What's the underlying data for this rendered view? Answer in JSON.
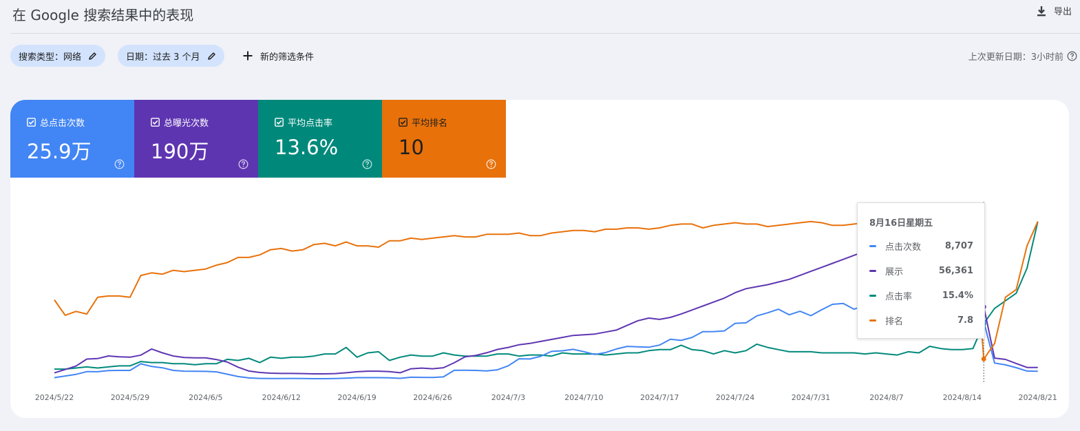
{
  "header": {
    "title": "在 Google 搜索结果中的表现",
    "export_label": "导出"
  },
  "filters": {
    "search_type": "搜索类型：网络",
    "date": "日期：过去 3 个月",
    "add_filter": "新的筛选条件",
    "last_update": "上次更新日期：3小时前"
  },
  "colors": {
    "clicks": "#4285f4",
    "impressions": "#5e35b1",
    "ctr": "#00897b",
    "position": "#e8710a"
  },
  "metrics": [
    {
      "label": "总点击次数",
      "value": "25.9万"
    },
    {
      "label": "总曝光次数",
      "value": "190万"
    },
    {
      "label": "平均点击率",
      "value": "13.6%"
    },
    {
      "label": "平均排名",
      "value": "10"
    }
  ],
  "tooltip": {
    "title": "8月16日星期五",
    "rows": [
      {
        "label": "点击次数",
        "value": "8,707"
      },
      {
        "label": "展示",
        "value": "56,361"
      },
      {
        "label": "点击率",
        "value": "15.4%"
      },
      {
        "label": "排名",
        "value": "7.8"
      }
    ]
  },
  "chart_data": {
    "type": "line",
    "x_start": "2024/5/22",
    "x_ticks": [
      "2024/5/22",
      "2024/5/29",
      "2024/6/5",
      "2024/6/12",
      "2024/6/19",
      "2024/6/26",
      "2024/7/3",
      "2024/7/10",
      "2024/7/17",
      "2024/7/24",
      "2024/7/31",
      "2024/8/7",
      "2024/8/14",
      "2024/8/21"
    ],
    "highlight_index": 86,
    "series": [
      {
        "name": "点击次数",
        "values": [
          640,
          880,
          1120,
          1510,
          1500,
          1660,
          1690,
          1690,
          2640,
          2250,
          2060,
          1690,
          1580,
          1560,
          1550,
          1480,
          1140,
          800,
          610,
          540,
          530,
          530,
          540,
          520,
          500,
          500,
          530,
          580,
          640,
          640,
          640,
          620,
          550,
          700,
          680,
          670,
          750,
          1700,
          1710,
          1690,
          1610,
          1780,
          2350,
          3360,
          3330,
          3720,
          4420,
          4510,
          4720,
          4380,
          3990,
          4260,
          4770,
          5150,
          5090,
          5030,
          5340,
          6180,
          6010,
          6440,
          7270,
          7280,
          7380,
          8470,
          8540,
          9540,
          9990,
          10510,
          9700,
          10210,
          9570,
          10430,
          11210,
          11330,
          10510,
          11070,
          12000,
          12930,
          14190,
          14910,
          16560,
          19300,
          21930,
          20630,
          20800,
          21000,
          8707,
          2750,
          2490,
          2080,
          1600,
          1570
        ]
      },
      {
        "name": "展示",
        "values": [
          6930,
          9450,
          12030,
          17280,
          17660,
          19610,
          18930,
          18690,
          20220,
          24800,
          21920,
          19550,
          18490,
          18150,
          18150,
          16940,
          15000,
          11200,
          8300,
          7200,
          6700,
          6500,
          6500,
          6400,
          6200,
          6200,
          6400,
          7000,
          7800,
          8200,
          8200,
          7900,
          7000,
          10000,
          10500,
          10000,
          10800,
          14500,
          19000,
          20000,
          22000,
          24500,
          26000,
          28000,
          29000,
          30500,
          32000,
          33500,
          35000,
          35500,
          36000,
          37500,
          39000,
          42500,
          46000,
          48000,
          47000,
          48500,
          51000,
          54000,
          57000,
          60000,
          63000,
          67000,
          70000,
          71500,
          73000,
          75000,
          77000,
          80000,
          83000,
          86000,
          89000,
          92000,
          95000,
          98000,
          100000,
          103000,
          106000,
          109000,
          112000,
          115000,
          118000,
          121000,
          123000,
          88000,
          56361,
          18000,
          17000,
          14000,
          11000,
          11000
        ]
      },
      {
        "name": "点击率",
        "values": [
          11.2,
          11.2,
          11.3,
          11.4,
          11.3,
          11.4,
          11.5,
          11.5,
          11.9,
          11.8,
          11.8,
          11.7,
          11.7,
          11.6,
          11.7,
          11.7,
          12.1,
          12.0,
          12.2,
          11.8,
          12.3,
          12.2,
          12.3,
          12.3,
          12.4,
          12.6,
          12.6,
          13.2,
          12.3,
          12.7,
          12.8,
          12.0,
          12.3,
          12.5,
          12.4,
          12.4,
          12.7,
          12.5,
          12.4,
          12.4,
          12.4,
          12.6,
          12.6,
          12.4,
          12.5,
          12.5,
          12.4,
          12.7,
          12.6,
          12.6,
          12.6,
          12.5,
          12.6,
          12.7,
          12.7,
          12.9,
          13.0,
          13.0,
          13.4,
          13.0,
          12.9,
          12.6,
          12.9,
          12.7,
          12.9,
          13.5,
          13.2,
          13.0,
          12.8,
          12.8,
          12.8,
          12.7,
          12.7,
          12.7,
          12.7,
          12.6,
          12.7,
          12.6,
          12.5,
          12.8,
          12.7,
          13.3,
          13.1,
          13.0,
          13.0,
          13.1,
          15.4,
          16.8,
          17.5,
          18.2,
          20.5,
          24.8
        ]
      },
      {
        "name": "排名",
        "values": [
          12.4,
          11.2,
          11.5,
          11.3,
          12.6,
          12.7,
          12.7,
          12.6,
          14.3,
          14.5,
          14.4,
          14.7,
          14.6,
          14.7,
          14.8,
          15.1,
          15.3,
          15.7,
          15.7,
          15.9,
          16.3,
          16.4,
          16.2,
          16.3,
          16.7,
          16.8,
          16.6,
          16.9,
          16.6,
          16.6,
          16.5,
          17.0,
          17.0,
          17.2,
          17.1,
          17.2,
          17.3,
          17.4,
          17.3,
          17.3,
          17.5,
          17.5,
          17.5,
          17.6,
          17.4,
          17.4,
          17.6,
          17.7,
          17.8,
          17.8,
          17.7,
          17.9,
          17.9,
          18.0,
          18.0,
          17.9,
          18.0,
          18.2,
          18.3,
          18.3,
          18.0,
          18.2,
          18.3,
          18.4,
          18.3,
          18.3,
          18.1,
          18.2,
          18.3,
          18.4,
          18.5,
          18.4,
          18.2,
          18.2,
          18.3,
          18.4,
          18.3,
          18.2,
          18.4,
          18.5,
          18.6,
          18.7,
          18.8,
          18.6,
          18.6,
          18.7,
          7.8,
          9.0,
          12.6,
          13.2,
          16.6,
          18.5
        ]
      }
    ]
  }
}
